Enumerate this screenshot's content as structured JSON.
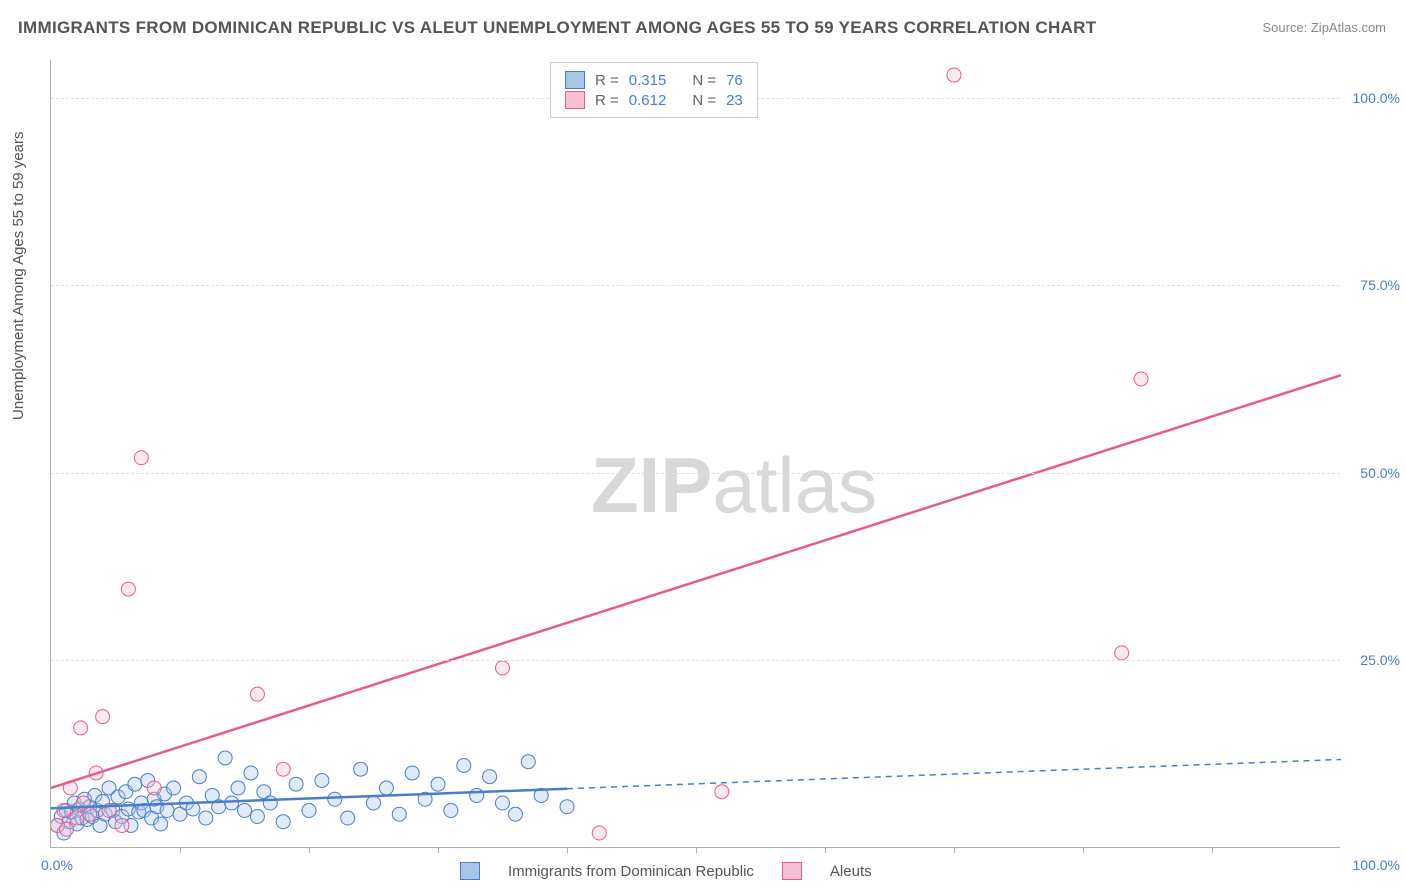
{
  "title": "IMMIGRANTS FROM DOMINICAN REPUBLIC VS ALEUT UNEMPLOYMENT AMONG AGES 55 TO 59 YEARS CORRELATION CHART",
  "source_label": "Source: ZipAtlas.com",
  "ylabel": "Unemployment Among Ages 55 to 59 years",
  "watermark_a": "ZIP",
  "watermark_b": "atlas",
  "chart": {
    "type": "scatter",
    "xlim": [
      0,
      100
    ],
    "ylim": [
      0,
      105
    ],
    "xtick_labels": [
      "0.0%",
      "100.0%"
    ],
    "ytick_positions": [
      25,
      50,
      75,
      100
    ],
    "ytick_labels": [
      "25.0%",
      "50.0%",
      "75.0%",
      "100.0%"
    ],
    "xtick_minor": [
      10,
      20,
      30,
      40,
      50,
      60,
      70,
      80,
      90
    ],
    "background_color": "#ffffff",
    "grid_color": "#e0e0e0",
    "axis_color": "#b0b0b0",
    "tick_label_color": "#4a7ec9",
    "title_color": "#555555",
    "title_fontsize": 17,
    "label_fontsize": 15,
    "tick_fontsize": 14,
    "marker_radius": 7,
    "marker_fill_opacity": 0.35,
    "series": [
      {
        "name": "Immigrants from Dominican Republic",
        "color_stroke": "#4a7ec9",
        "color_fill": "#a9c5ea",
        "R": "0.315",
        "N": "76",
        "line": {
          "type": "solid_then_dashed",
          "x_solid_end": 40,
          "y0": 5.3,
          "y1": 11.8,
          "width": 2.5
        },
        "points": [
          [
            0.5,
            3.0
          ],
          [
            0.8,
            4.2
          ],
          [
            1.0,
            2.0
          ],
          [
            1.2,
            5.0
          ],
          [
            1.4,
            3.5
          ],
          [
            1.6,
            4.8
          ],
          [
            1.8,
            6.0
          ],
          [
            2.0,
            3.2
          ],
          [
            2.2,
            5.2
          ],
          [
            2.4,
            4.0
          ],
          [
            2.6,
            6.5
          ],
          [
            2.8,
            3.8
          ],
          [
            3.0,
            5.5
          ],
          [
            3.2,
            4.2
          ],
          [
            3.4,
            7.0
          ],
          [
            3.6,
            5.0
          ],
          [
            3.8,
            3.0
          ],
          [
            4.0,
            6.2
          ],
          [
            4.2,
            4.5
          ],
          [
            4.5,
            8.0
          ],
          [
            4.8,
            5.0
          ],
          [
            5.0,
            3.5
          ],
          [
            5.2,
            6.8
          ],
          [
            5.5,
            4.2
          ],
          [
            5.8,
            7.5
          ],
          [
            6.0,
            5.2
          ],
          [
            6.2,
            3.0
          ],
          [
            6.5,
            8.5
          ],
          [
            6.8,
            4.8
          ],
          [
            7.0,
            6.0
          ],
          [
            7.2,
            5.0
          ],
          [
            7.5,
            9.0
          ],
          [
            7.8,
            4.0
          ],
          [
            8.0,
            6.5
          ],
          [
            8.2,
            5.5
          ],
          [
            8.5,
            3.2
          ],
          [
            8.8,
            7.2
          ],
          [
            9.0,
            5.0
          ],
          [
            9.5,
            8.0
          ],
          [
            10.0,
            4.5
          ],
          [
            10.5,
            6.0
          ],
          [
            11.0,
            5.2
          ],
          [
            11.5,
            9.5
          ],
          [
            12.0,
            4.0
          ],
          [
            12.5,
            7.0
          ],
          [
            13.0,
            5.5
          ],
          [
            13.5,
            12.0
          ],
          [
            14.0,
            6.0
          ],
          [
            14.5,
            8.0
          ],
          [
            15.0,
            5.0
          ],
          [
            15.5,
            10.0
          ],
          [
            16.0,
            4.2
          ],
          [
            16.5,
            7.5
          ],
          [
            17.0,
            6.0
          ],
          [
            18.0,
            3.5
          ],
          [
            19.0,
            8.5
          ],
          [
            20.0,
            5.0
          ],
          [
            21.0,
            9.0
          ],
          [
            22.0,
            6.5
          ],
          [
            23.0,
            4.0
          ],
          [
            24.0,
            10.5
          ],
          [
            25.0,
            6.0
          ],
          [
            26.0,
            8.0
          ],
          [
            27.0,
            4.5
          ],
          [
            28.0,
            10.0
          ],
          [
            29.0,
            6.5
          ],
          [
            30.0,
            8.5
          ],
          [
            31.0,
            5.0
          ],
          [
            32.0,
            11.0
          ],
          [
            33.0,
            7.0
          ],
          [
            34.0,
            9.5
          ],
          [
            35.0,
            6.0
          ],
          [
            36.0,
            4.5
          ],
          [
            37.0,
            11.5
          ],
          [
            38.0,
            7.0
          ],
          [
            40.0,
            5.5
          ]
        ]
      },
      {
        "name": "Aleuts",
        "color_stroke": "#e95b8e",
        "color_fill": "#f7c0d4",
        "R": "0.612",
        "N": "23",
        "line": {
          "type": "solid",
          "y0": 8.0,
          "y1": 63.0,
          "width": 2.5
        },
        "points": [
          [
            0.5,
            3.0
          ],
          [
            1.0,
            5.0
          ],
          [
            1.2,
            2.5
          ],
          [
            1.5,
            8.0
          ],
          [
            2.0,
            4.0
          ],
          [
            2.3,
            16.0
          ],
          [
            2.5,
            6.0
          ],
          [
            3.0,
            4.5
          ],
          [
            3.5,
            10.0
          ],
          [
            4.0,
            17.5
          ],
          [
            4.5,
            5.0
          ],
          [
            5.5,
            3.0
          ],
          [
            6.0,
            34.5
          ],
          [
            7.0,
            52.0
          ],
          [
            8.0,
            8.0
          ],
          [
            16.0,
            20.5
          ],
          [
            18.0,
            10.5
          ],
          [
            35.0,
            24.0
          ],
          [
            42.5,
            2.0
          ],
          [
            52.0,
            7.5
          ],
          [
            70.0,
            103.0
          ],
          [
            83.0,
            26.0
          ],
          [
            84.5,
            62.5
          ]
        ]
      }
    ]
  },
  "legend_box": {
    "r_label": "R =",
    "n_label": "N ="
  },
  "bottom_legend": {
    "series1": "Immigrants from Dominican Republic",
    "series2": "Aleuts"
  }
}
